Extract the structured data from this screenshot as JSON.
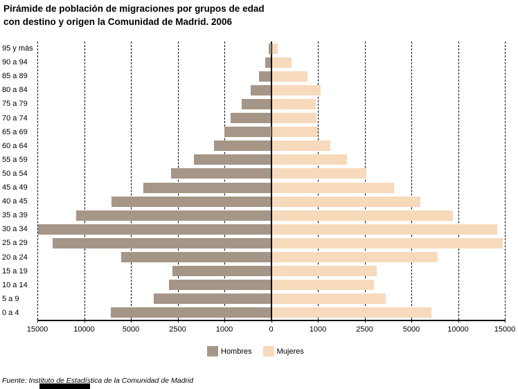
{
  "title": "Pirámide de población de migraciones por grupos de edad\ncon destino y origen la Comunidad de Madrid. 2006",
  "source": "Fuente: Instituto de Estadística de la Comunidad de Madrid",
  "legend": {
    "hombres_label": "Hombres",
    "mujeres_label": "Mujeres"
  },
  "colors": {
    "hombres": "#A59687",
    "mujeres": "#F7D9BB",
    "axis": "#000000",
    "background": "#FFFFFF"
  },
  "axis": {
    "x_tick_labels": [
      "15000",
      "10000",
      "5000",
      "2500",
      "1000",
      "0",
      "1000",
      "2500",
      "5000",
      "10000",
      "15000"
    ],
    "x_scale_breakpoints": [
      0,
      1000,
      2500,
      5000,
      10000,
      15000
    ],
    "x_scale_note": "non-linear: equal pixel spacing between consecutive tick values, mirrored left (Hombres) / right (Mujeres)",
    "grid": "vertical dashed gridline at every tick, solid line at 0"
  },
  "chart_data": {
    "type": "bar",
    "variant": "population-pyramid",
    "title": "Pirámide de población de migraciones por grupos de edad con destino y origen la Comunidad de Madrid. 2006",
    "xlabel": "",
    "ylabel": "",
    "categories": [
      "95 y más",
      "90 a 94",
      "85 a 89",
      "80 a 84",
      "75 a 79",
      "70 a 74",
      "65 a 69",
      "60 a 64",
      "55 a 59",
      "50 a 54",
      "45 a 49",
      "40 a 45",
      "35 a 39",
      "30 a 34",
      "25 a 29",
      "20 a 24",
      "15 a 19",
      "10 a 14",
      "5 a 9",
      "0 a 4"
    ],
    "series": [
      {
        "name": "Hombres",
        "side": "left",
        "values": [
          50,
          120,
          260,
          440,
          630,
          860,
          1000,
          1330,
          1980,
          2840,
          4320,
          7070,
          10850,
          14900,
          13400,
          6040,
          2780,
          2960,
          3790,
          7150
        ]
      },
      {
        "name": "Mujeres",
        "side": "right",
        "values": [
          130,
          420,
          760,
          1070,
          940,
          950,
          990,
          1380,
          1910,
          2560,
          4040,
          5890,
          9390,
          14130,
          14670,
          7760,
          3120,
          2980,
          3600,
          7040
        ]
      }
    ],
    "xlim_each_side": [
      0,
      15000
    ],
    "legend_position": "bottom-center",
    "grid": true
  }
}
